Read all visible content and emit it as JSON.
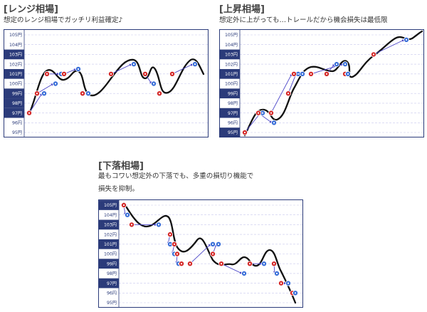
{
  "panels": [
    {
      "id": "range",
      "title": "[レンジ相場]",
      "description": [
        "想定のレンジ相場でガッチリ利益確定♪"
      ],
      "highlighted_ticks": [
        "97円",
        "98円",
        "99円",
        "101円",
        "103円"
      ]
    },
    {
      "id": "uptrend",
      "title": "[上昇相場]",
      "description": [
        "想定外に上がっても…トレールだから機会損失は最低限"
      ],
      "highlighted_ticks": [
        "95円",
        "97円",
        "99円",
        "101円",
        "103円"
      ]
    },
    {
      "id": "downtrend",
      "title": "[下落相場]",
      "description": [
        "最もコワい想定外の下落でも、多重の損切り機能で",
        "損失を抑制。"
      ],
      "highlighted_ticks": [
        "97円",
        "99円",
        "101円",
        "103円",
        "105円"
      ]
    }
  ],
  "y_axis": {
    "ticks": [
      "105円",
      "104円",
      "103円",
      "102円",
      "101円",
      "100円",
      "99円",
      "98円",
      "97円",
      "96円",
      "95円"
    ],
    "values": [
      105,
      104,
      103,
      102,
      101,
      100,
      99,
      98,
      97,
      96,
      95
    ]
  },
  "colors": {
    "axis_highlight": "#2b3b7a",
    "gridline": "#c8c8ee",
    "price_line": "#111111",
    "entry_marker": "#d42a2a",
    "exit_marker": "#3a6fd8",
    "trade_arrow": "#4a45c8"
  },
  "marker_legend": {
    "entry_marker": "red dot",
    "exit_marker": "blue dot"
  }
}
